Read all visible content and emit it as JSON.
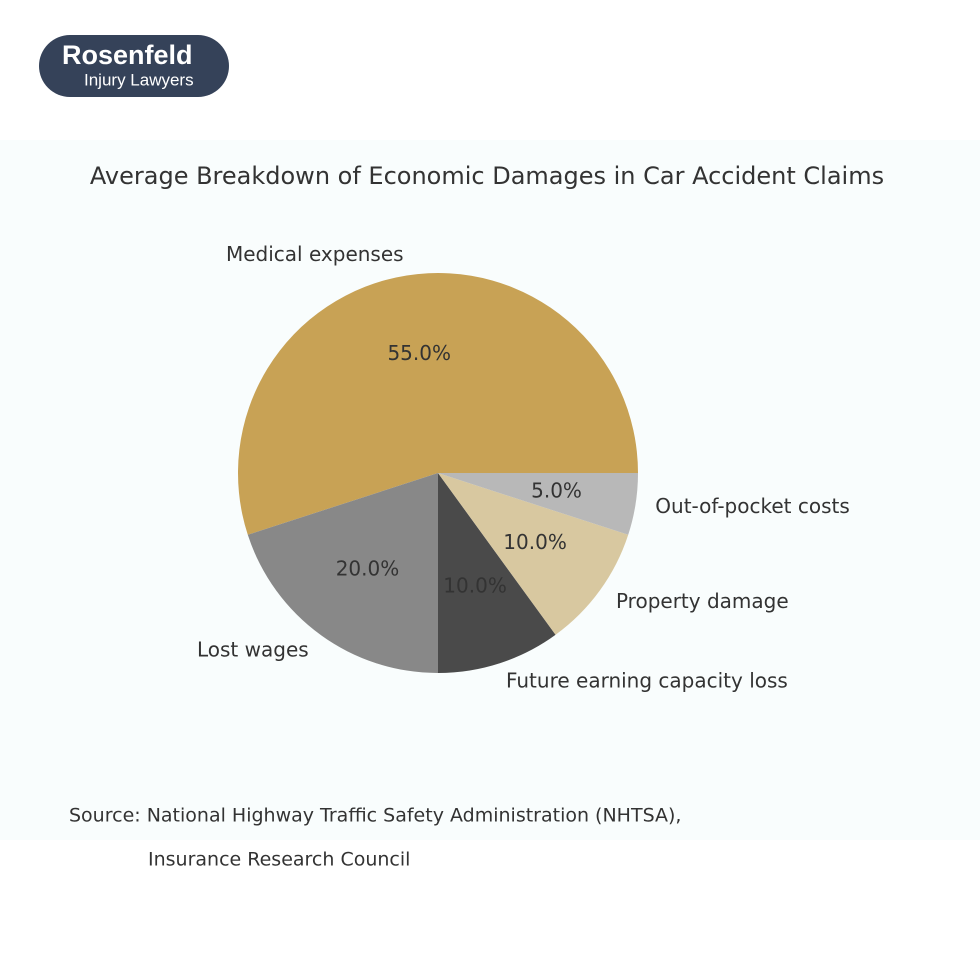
{
  "logo": {
    "name": "Rosenfeld",
    "tagline": "Injury Lawyers"
  },
  "chart_data": {
    "type": "pie",
    "title": "Average Breakdown of Economic Damages in Car Accident Claims",
    "categories": [
      "Medical expenses",
      "Lost wages",
      "Future earning capacity loss",
      "Property damage",
      "Out-of-pocket costs"
    ],
    "values": [
      55,
      20,
      10,
      10,
      5
    ],
    "value_labels": [
      "55.0%",
      "20.0%",
      "10.0%",
      "10.0%",
      "5.0%"
    ],
    "colors": [
      "#c8a255",
      "#888888",
      "#4a4a4a",
      "#d8c8a0",
      "#b8b8b8"
    ],
    "source": [
      "Source: National Highway Traffic Safety Administration (NHTSA),",
      "Insurance Research Council"
    ]
  }
}
